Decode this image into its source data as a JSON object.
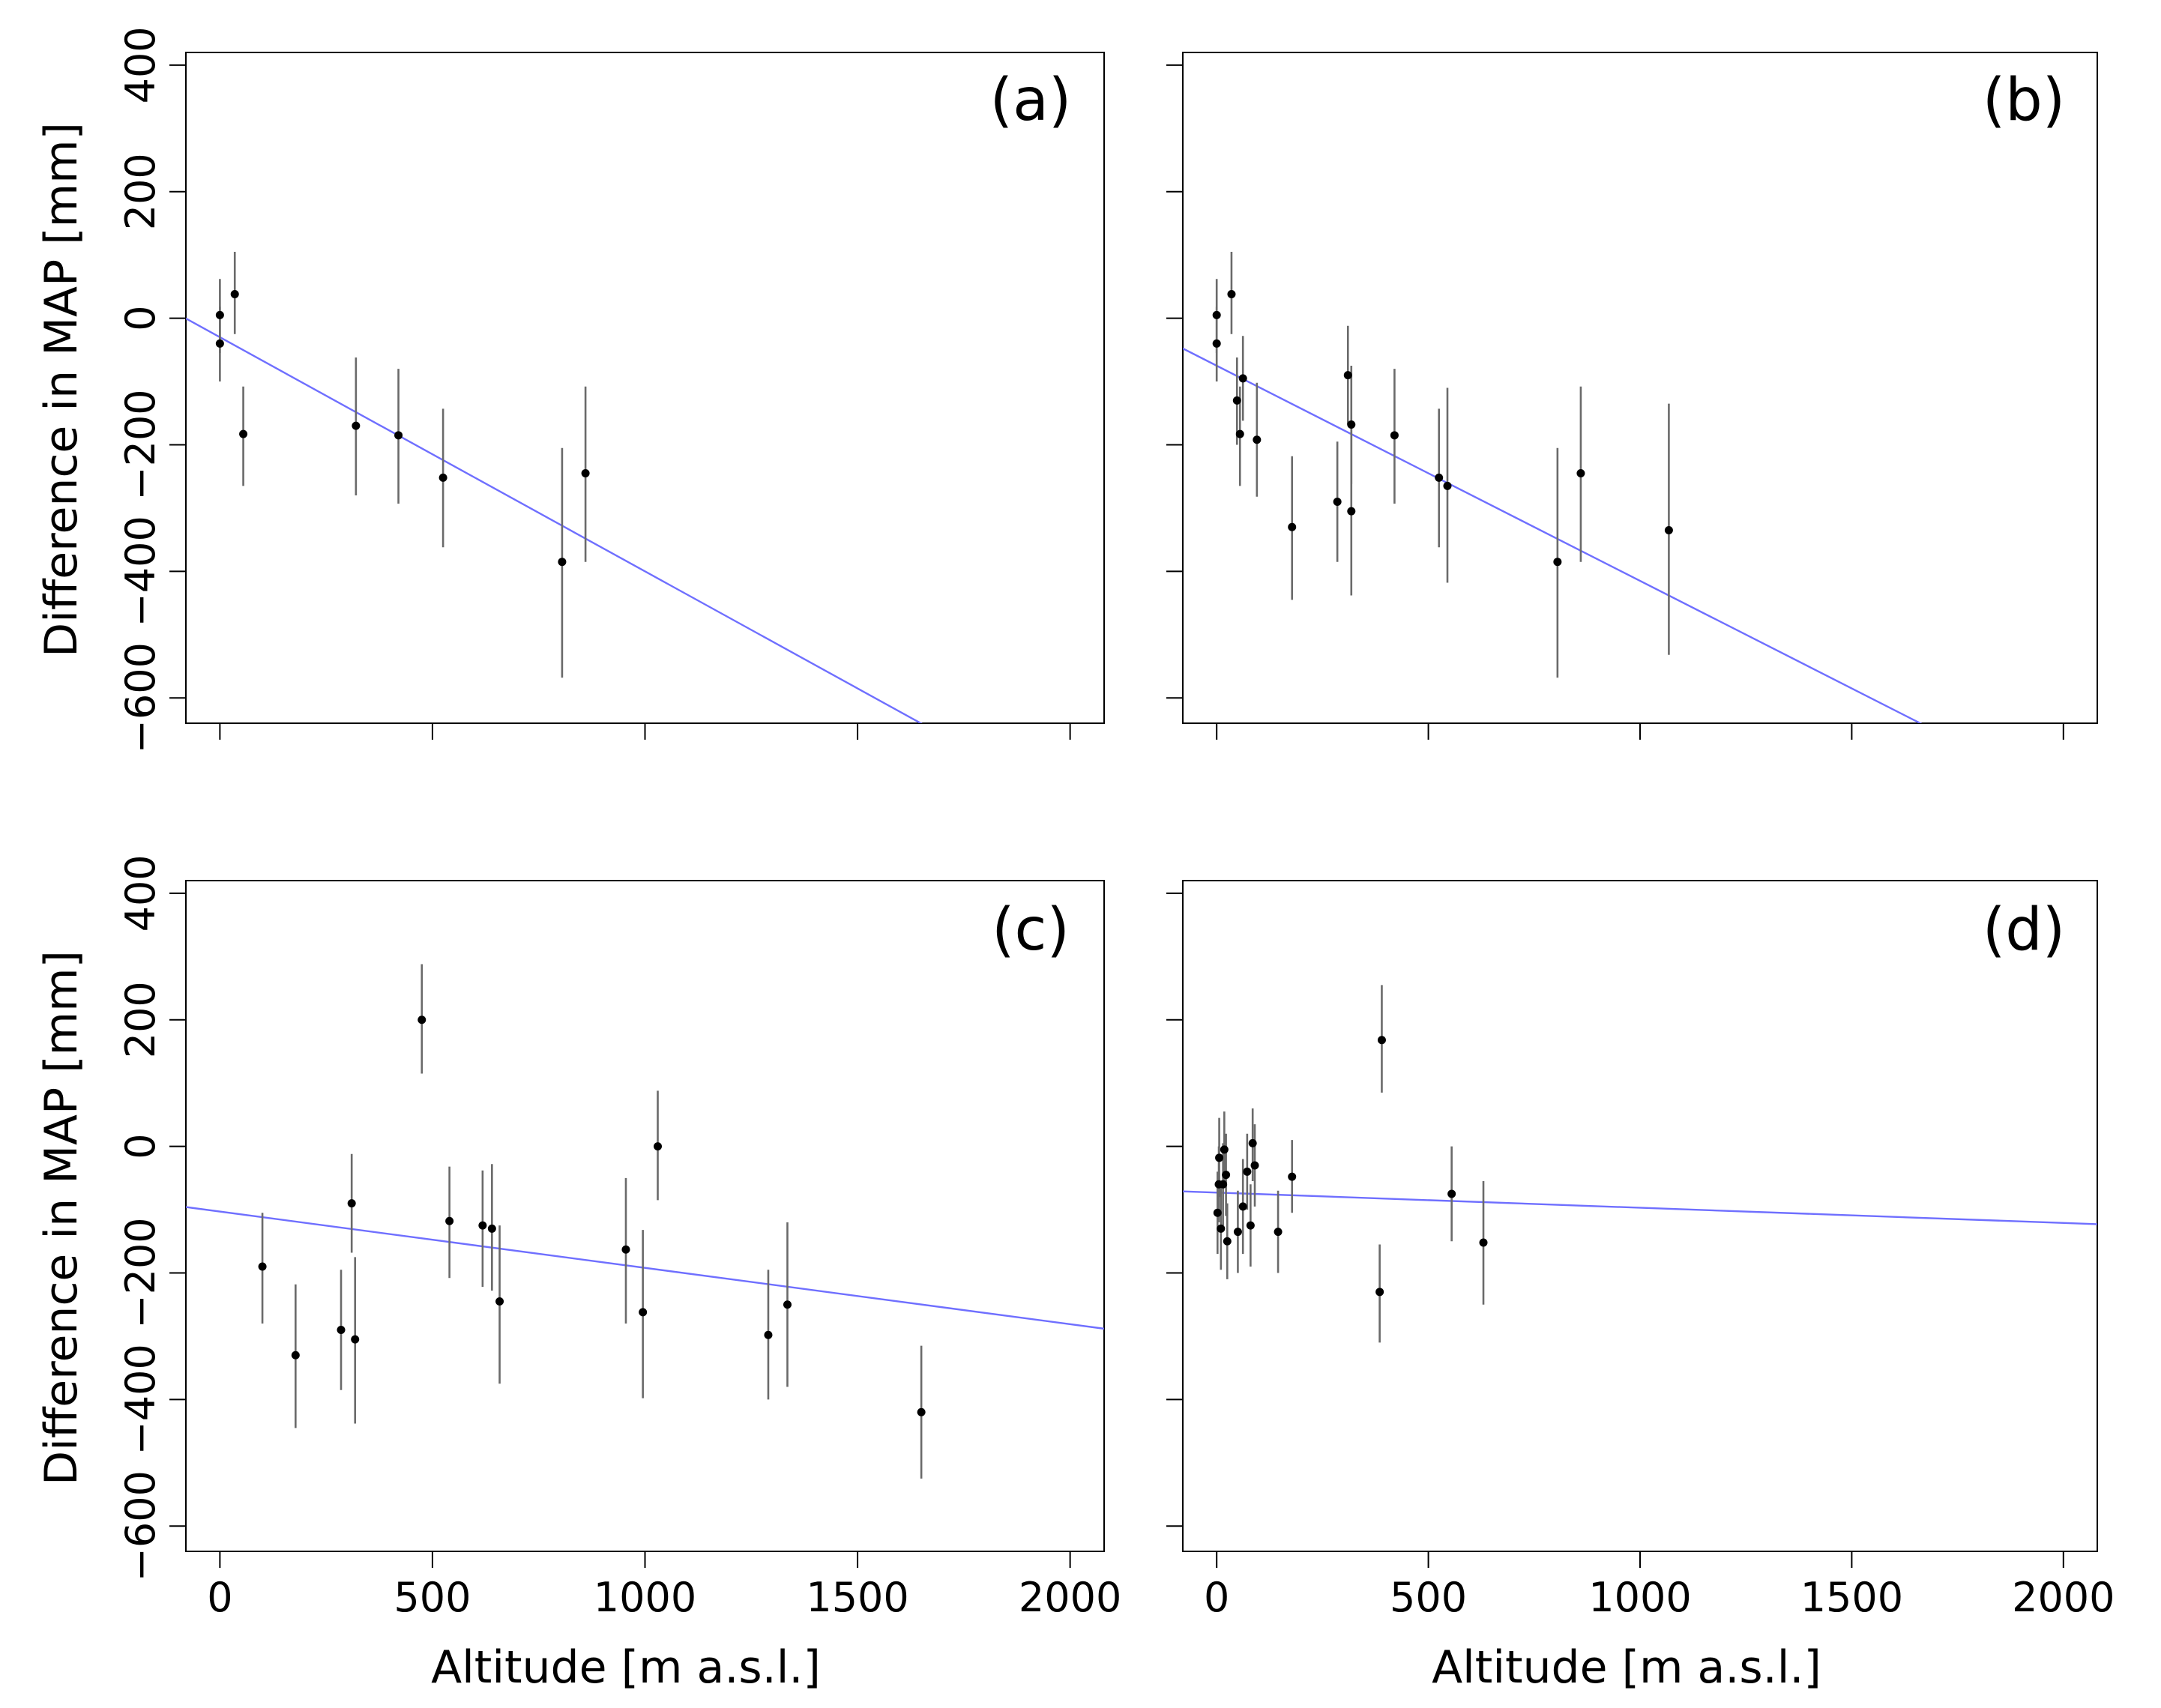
{
  "figure": {
    "x_axis_title": "Altitude [m a.s.l.]",
    "y_axis_title": "Difference  in MAP [mm]"
  },
  "colors": {
    "regression_line": "#6f6fff",
    "error_bar": "#6a6a6a",
    "point": "#000000",
    "frame": "#000000"
  },
  "chart_data": [
    {
      "type": "scatter",
      "panel": "(a)",
      "xlim": [
        -80,
        2080
      ],
      "ylim": [
        -640,
        420
      ],
      "xticks": [
        0,
        500,
        1000,
        1500,
        2000
      ],
      "yticks": [
        -600,
        -400,
        -200,
        0,
        200,
        400
      ],
      "xtick_labels": [
        "0",
        "500",
        "1000",
        "1500",
        "2000"
      ],
      "ytick_labels": [
        "−600",
        "−400",
        "−200",
        "0",
        "200",
        "400"
      ],
      "x_labels_shown": false,
      "y_labels_shown": true,
      "points": [
        {
          "x": 0,
          "y": 5,
          "lo": -55,
          "hi": 62
        },
        {
          "x": 0,
          "y": -40,
          "lo": -100,
          "hi": 18
        },
        {
          "x": 35,
          "y": 38,
          "lo": -25,
          "hi": 105
        },
        {
          "x": 55,
          "y": -183,
          "lo": -265,
          "hi": -108
        },
        {
          "x": 320,
          "y": -170,
          "lo": -280,
          "hi": -62
        },
        {
          "x": 420,
          "y": -185,
          "lo": -293,
          "hi": -80
        },
        {
          "x": 525,
          "y": -252,
          "lo": -362,
          "hi": -143
        },
        {
          "x": 805,
          "y": -385,
          "lo": -568,
          "hi": -205
        },
        {
          "x": 860,
          "y": -245,
          "lo": -385,
          "hi": -108
        }
      ],
      "fit": {
        "intercept": -30,
        "slope": -0.37
      }
    },
    {
      "type": "scatter",
      "panel": "(b)",
      "xlim": [
        -80,
        2080
      ],
      "ylim": [
        -640,
        420
      ],
      "xticks": [
        0,
        500,
        1000,
        1500,
        2000
      ],
      "yticks": [
        -600,
        -400,
        -200,
        0,
        200,
        400
      ],
      "xtick_labels": [
        "0",
        "500",
        "1000",
        "1500",
        "2000"
      ],
      "ytick_labels": [
        "−600",
        "−400",
        "−200",
        "0",
        "200",
        "400"
      ],
      "x_labels_shown": false,
      "y_labels_shown": false,
      "points": [
        {
          "x": 0,
          "y": 5,
          "lo": -55,
          "hi": 62
        },
        {
          "x": 0,
          "y": -40,
          "lo": -100,
          "hi": 18
        },
        {
          "x": 35,
          "y": 38,
          "lo": -25,
          "hi": 105
        },
        {
          "x": 48,
          "y": -130,
          "lo": -200,
          "hi": -62
        },
        {
          "x": 55,
          "y": -183,
          "lo": -265,
          "hi": -108
        },
        {
          "x": 62,
          "y": -95,
          "lo": -162,
          "hi": -28
        },
        {
          "x": 95,
          "y": -192,
          "lo": -282,
          "hi": -102
        },
        {
          "x": 178,
          "y": -330,
          "lo": -445,
          "hi": -218
        },
        {
          "x": 285,
          "y": -290,
          "lo": -385,
          "hi": -195
        },
        {
          "x": 310,
          "y": -90,
          "lo": -168,
          "hi": -12
        },
        {
          "x": 318,
          "y": -168,
          "lo": -262,
          "hi": -75
        },
        {
          "x": 318,
          "y": -305,
          "lo": -438,
          "hi": -175
        },
        {
          "x": 420,
          "y": -185,
          "lo": -293,
          "hi": -80
        },
        {
          "x": 525,
          "y": -252,
          "lo": -362,
          "hi": -143
        },
        {
          "x": 545,
          "y": -265,
          "lo": -418,
          "hi": -110
        },
        {
          "x": 805,
          "y": -385,
          "lo": -568,
          "hi": -205
        },
        {
          "x": 860,
          "y": -245,
          "lo": -385,
          "hi": -108
        },
        {
          "x": 1068,
          "y": -335,
          "lo": -532,
          "hi": -135
        }
      ],
      "fit": {
        "intercept": -75,
        "slope": -0.34
      }
    },
    {
      "type": "scatter",
      "panel": "(c)",
      "xlim": [
        -80,
        2080
      ],
      "ylim": [
        -640,
        420
      ],
      "xticks": [
        0,
        500,
        1000,
        1500,
        2000
      ],
      "yticks": [
        -600,
        -400,
        -200,
        0,
        200,
        400
      ],
      "xtick_labels": [
        "0",
        "500",
        "1000",
        "1500",
        "2000"
      ],
      "ytick_labels": [
        "−600",
        "−400",
        "−200",
        "0",
        "200",
        "400"
      ],
      "x_labels_shown": true,
      "y_labels_shown": true,
      "points": [
        {
          "x": 100,
          "y": -190,
          "lo": -280,
          "hi": -105
        },
        {
          "x": 178,
          "y": -330,
          "lo": -445,
          "hi": -218
        },
        {
          "x": 285,
          "y": -290,
          "lo": -385,
          "hi": -195
        },
        {
          "x": 310,
          "y": -90,
          "lo": -168,
          "hi": -12
        },
        {
          "x": 318,
          "y": -305,
          "lo": -438,
          "hi": -175
        },
        {
          "x": 475,
          "y": 200,
          "lo": 115,
          "hi": 288
        },
        {
          "x": 540,
          "y": -118,
          "lo": -208,
          "hi": -32
        },
        {
          "x": 618,
          "y": -125,
          "lo": -222,
          "hi": -38
        },
        {
          "x": 640,
          "y": -130,
          "lo": -228,
          "hi": -28
        },
        {
          "x": 658,
          "y": -245,
          "lo": -375,
          "hi": -125
        },
        {
          "x": 955,
          "y": -163,
          "lo": -280,
          "hi": -50
        },
        {
          "x": 995,
          "y": -262,
          "lo": -398,
          "hi": -132
        },
        {
          "x": 1030,
          "y": 0,
          "lo": -85,
          "hi": 88
        },
        {
          "x": 1290,
          "y": -298,
          "lo": -400,
          "hi": -195
        },
        {
          "x": 1335,
          "y": -250,
          "lo": -380,
          "hi": -120
        },
        {
          "x": 1650,
          "y": -420,
          "lo": -525,
          "hi": -315
        }
      ],
      "fit": {
        "intercept": -103,
        "slope": -0.089
      }
    },
    {
      "type": "scatter",
      "panel": "(d)",
      "xlim": [
        -80,
        2080
      ],
      "ylim": [
        -640,
        420
      ],
      "xticks": [
        0,
        500,
        1000,
        1500,
        2000
      ],
      "yticks": [
        -600,
        -400,
        -200,
        0,
        200,
        400
      ],
      "xtick_labels": [
        "0",
        "500",
        "1000",
        "1500",
        "2000"
      ],
      "ytick_labels": [
        "−600",
        "−400",
        "−200",
        "0",
        "200",
        "400"
      ],
      "x_labels_shown": true,
      "y_labels_shown": false,
      "points": [
        {
          "x": 2,
          "y": -105,
          "lo": -170,
          "hi": -40
        },
        {
          "x": 5,
          "y": -60,
          "lo": -120,
          "hi": 0
        },
        {
          "x": 6,
          "y": -18,
          "lo": -80,
          "hi": 45
        },
        {
          "x": 10,
          "y": -130,
          "lo": -195,
          "hi": -65
        },
        {
          "x": 15,
          "y": -60,
          "lo": -125,
          "hi": 5
        },
        {
          "x": 18,
          "y": -5,
          "lo": -65,
          "hi": 55
        },
        {
          "x": 22,
          "y": -45,
          "lo": -110,
          "hi": 20
        },
        {
          "x": 25,
          "y": -150,
          "lo": -210,
          "hi": -90
        },
        {
          "x": 50,
          "y": -135,
          "lo": -200,
          "hi": -70
        },
        {
          "x": 62,
          "y": -95,
          "lo": -170,
          "hi": -20
        },
        {
          "x": 72,
          "y": -40,
          "lo": -100,
          "hi": 20
        },
        {
          "x": 80,
          "y": -125,
          "lo": -190,
          "hi": -60
        },
        {
          "x": 85,
          "y": 5,
          "lo": -55,
          "hi": 60
        },
        {
          "x": 90,
          "y": -30,
          "lo": -95,
          "hi": 35
        },
        {
          "x": 145,
          "y": -135,
          "lo": -200,
          "hi": -70
        },
        {
          "x": 178,
          "y": -48,
          "lo": -105,
          "hi": 10
        },
        {
          "x": 385,
          "y": -230,
          "lo": -310,
          "hi": -155
        },
        {
          "x": 390,
          "y": 168,
          "lo": 85,
          "hi": 255
        },
        {
          "x": 555,
          "y": -75,
          "lo": -150,
          "hi": 0
        },
        {
          "x": 630,
          "y": -152,
          "lo": -250,
          "hi": -55
        }
      ],
      "fit": {
        "intercept": -73,
        "slope": -0.024
      }
    }
  ]
}
